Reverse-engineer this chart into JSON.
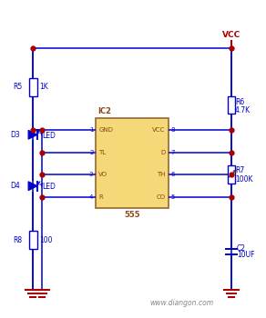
{
  "wire_color": "#0000cc",
  "dot_color": "#aa0000",
  "gnd_color": "#aa0000",
  "vcc_color": "#aa0000",
  "ic_fill": "#f5d878",
  "ic_edge": "#996633",
  "label_color": "#0000cc",
  "ic_label_color": "#8B4513",
  "watermark": "www.diangon.com",
  "watermark_color": "#888888",
  "vcc_label": "VCC",
  "ic_name": "IC2",
  "ic_subtitle": "555",
  "pins_left": [
    "GND",
    "TL",
    "VO",
    "R"
  ],
  "pins_right": [
    "VCC",
    "D",
    "TH",
    "CO"
  ],
  "pin_nums_left": [
    "1",
    "2",
    "3",
    "4"
  ],
  "pin_nums_right": [
    "8",
    "7",
    "6",
    "5"
  ],
  "R5_label": "R5",
  "R5_val": "1K",
  "R6_label": "R6",
  "R6_val": "4.7K",
  "R7_label": "R7",
  "R7_val": "100K",
  "R8_label": "R8",
  "R8_val": "100",
  "C2_label": "C2",
  "C2_val": "10UF",
  "D3_label": "D3",
  "D3_led": "LED",
  "D4_label": "D4",
  "D4_led": "LED"
}
